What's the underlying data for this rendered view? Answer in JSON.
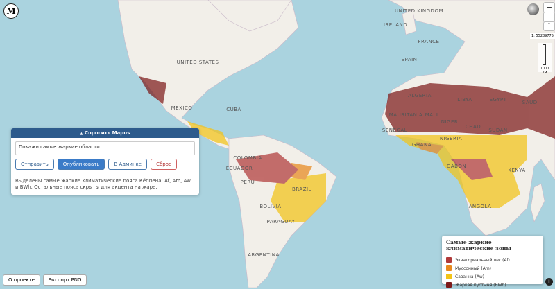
{
  "header": {
    "logo": "M"
  },
  "chat_panel": {
    "toggle": "▲",
    "title": "Спросить Mapus",
    "input": "Покажи самые жаркие области",
    "buttons": [
      "Отправить",
      "Опубликовать",
      "В Админке",
      "Сброс"
    ],
    "message": "Выделены самые жаркие климатические пояса Кёппена: Af, Am, Aw и BWh. Остальные пояса скрыты для акцента на жаре."
  },
  "legend": {
    "title": "Самые жаркие климатические зоны",
    "items": [
      {
        "label": "Экваториальный лес (Af)",
        "color": "#b03a3a"
      },
      {
        "label": "Муссонный (Am)",
        "color": "#e8891e"
      },
      {
        "label": "Саванна (Aw)",
        "color": "#f2c417"
      },
      {
        "label": "Жаркая пустыня (BWh)",
        "color": "#7d1a1a"
      }
    ]
  },
  "map": {
    "labels": [
      "UNITED STATES",
      "MEXICO",
      "CUBA",
      "COLOMBIA",
      "ECUADOR",
      "PERU",
      "BRAZIL",
      "BOLIVIA",
      "PARAGUAY",
      "ARGENTINA",
      "UNITED KINGDOM",
      "IRELAND",
      "FRANCE",
      "SPAIN",
      "ALGERIA",
      "LIBYA",
      "EGYPT",
      "MAURITANIA",
      "MALI",
      "NIGER",
      "CHAD",
      "SUDAN",
      "SAUDI",
      "SENEGAL",
      "NIGERIA",
      "GHANA",
      "GABON",
      "KENYA",
      "ANGOLA"
    ],
    "scale": "1: 55289775",
    "scale_bar": "1000 км"
  },
  "controls": {
    "zoom_in": "+",
    "zoom_out": "−"
  },
  "footer": {
    "buttons": [
      "О проекте",
      "Экспорт PNG"
    ],
    "info": "i"
  }
}
